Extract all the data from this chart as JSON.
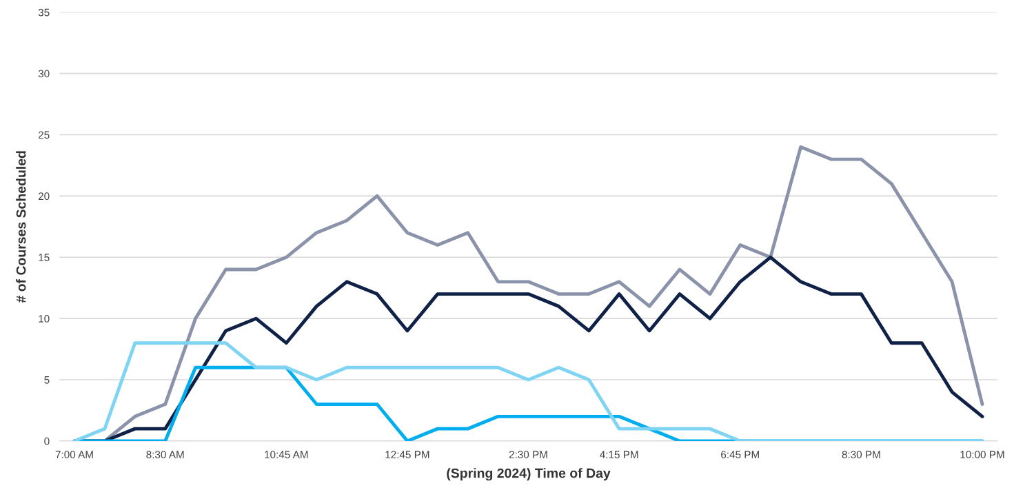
{
  "chart_data": {
    "type": "line",
    "xlabel": "(Spring 2024) Time of Day",
    "ylabel": "# of Courses Scheduled",
    "categories": [
      "7:00 AM",
      null,
      null,
      "8:30 AM",
      null,
      null,
      null,
      "10:45 AM",
      null,
      null,
      null,
      "12:45 PM",
      null,
      null,
      null,
      "2:30 PM",
      null,
      null,
      "4:15 PM",
      null,
      null,
      null,
      "6:45 PM",
      null,
      null,
      null,
      "8:30 PM",
      null,
      null,
      null,
      "10:00 PM"
    ],
    "series": [
      {
        "color": "#8b93aa",
        "values": [
          0,
          0,
          2,
          3,
          10,
          14,
          14,
          15,
          17,
          18,
          20,
          17,
          16,
          17,
          13,
          13,
          12,
          12,
          13,
          11,
          14,
          12,
          16,
          15,
          24,
          23,
          23,
          21,
          17,
          13,
          3
        ]
      },
      {
        "color": "#0f2147",
        "values": [
          0,
          0,
          1,
          1,
          5,
          9,
          10,
          8,
          11,
          13,
          12,
          9,
          12,
          12,
          12,
          12,
          11,
          9,
          12,
          9,
          12,
          10,
          13,
          15,
          13,
          12,
          12,
          8,
          8,
          4,
          2
        ]
      },
      {
        "color": "#00aeef",
        "values": [
          0,
          0,
          0,
          0,
          6,
          6,
          6,
          6,
          3,
          3,
          3,
          0,
          1,
          1,
          2,
          2,
          2,
          2,
          2,
          1,
          0,
          0,
          0,
          0,
          0,
          0,
          0,
          0,
          0,
          0,
          0
        ]
      },
      {
        "color": "#7fd3f3",
        "values": [
          0,
          1,
          8,
          8,
          8,
          8,
          6,
          6,
          5,
          6,
          6,
          6,
          6,
          6,
          6,
          5,
          6,
          5,
          1,
          1,
          1,
          1,
          0,
          0,
          0,
          0,
          0,
          0,
          0,
          0,
          0
        ]
      }
    ],
    "ylim": [
      0,
      35
    ],
    "yticks": [
      0,
      5,
      10,
      15,
      20,
      25,
      30,
      35
    ],
    "grid": "y",
    "line_style": "solid"
  }
}
